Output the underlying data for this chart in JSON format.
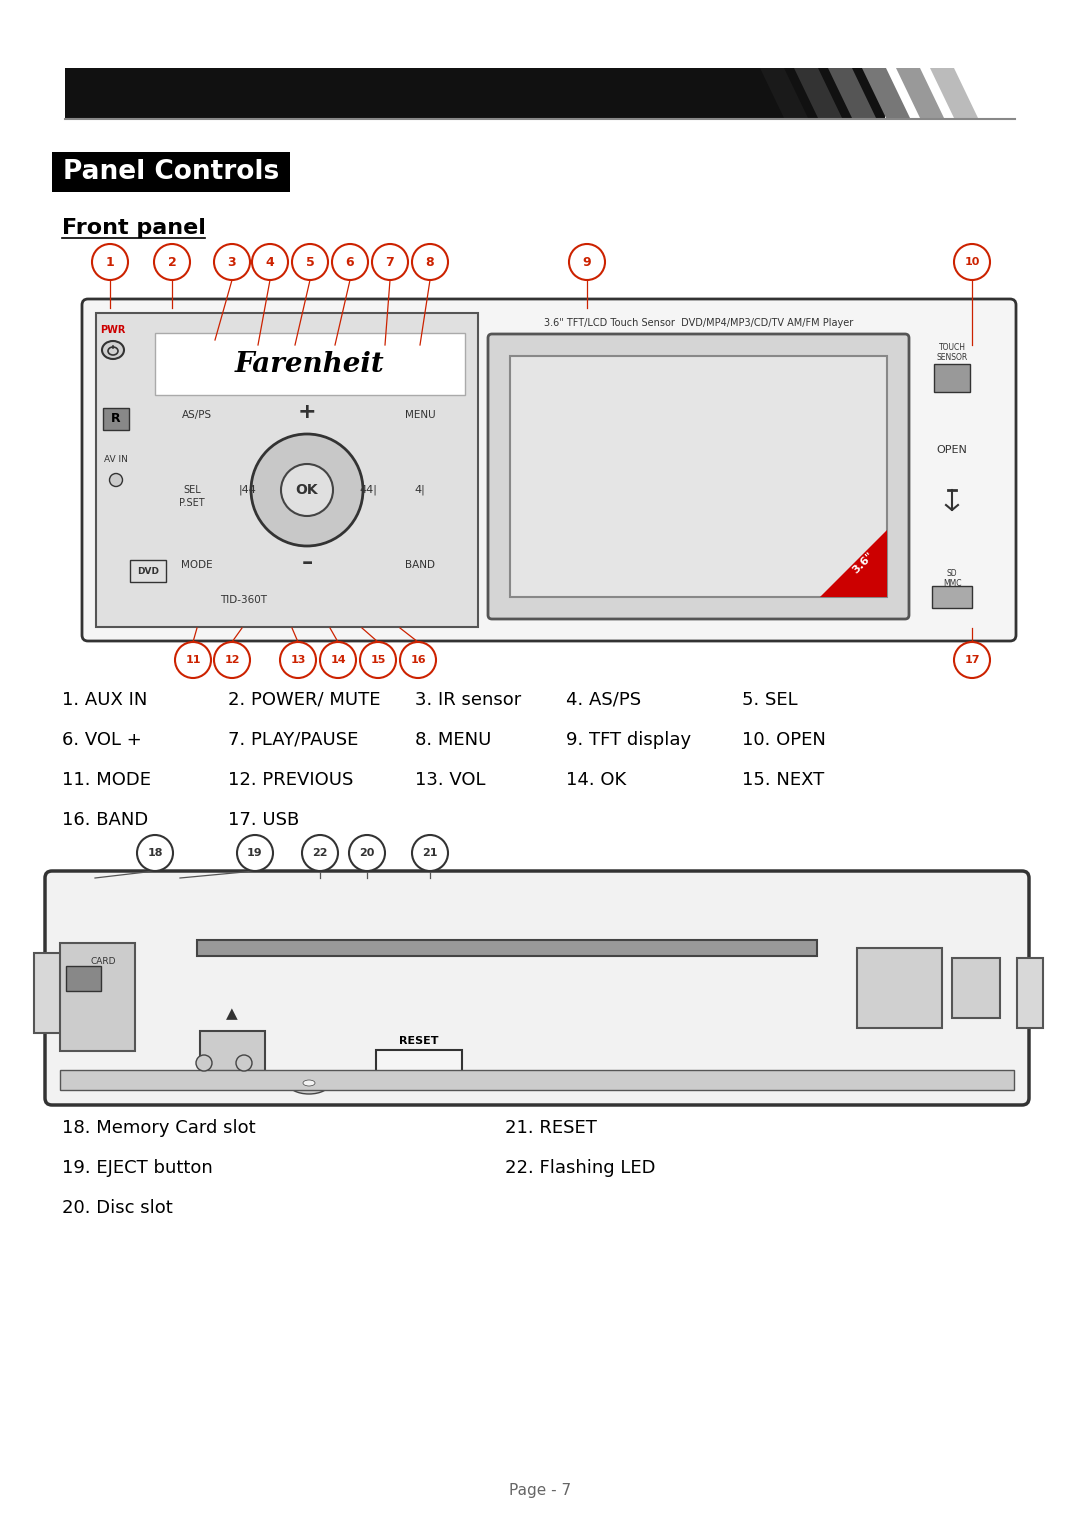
{
  "title": "Panel Controls",
  "subtitle": "Front panel",
  "bg_color": "#ffffff",
  "header_bar_color": "#111111",
  "title_bg": "#000000",
  "title_text": "#ffffff",
  "legend_col1": [
    "1. AUX IN",
    "6. VOL +",
    "11. MODE",
    "16. BAND"
  ],
  "legend_col2": [
    "2. POWER/ MUTE",
    "7. PLAY/PAUSE",
    "12. PREVIOUS",
    "17. USB"
  ],
  "legend_col3": [
    "3. IR sensor",
    "8. MENU",
    "13. VOL",
    ""
  ],
  "legend_col4": [
    "4. AS/PS",
    "9. TFT display",
    "14. OK",
    ""
  ],
  "legend_col5": [
    "5. SEL",
    "10. OPEN",
    "15. NEXT",
    ""
  ],
  "legend2_col1": [
    "18. Memory Card slot",
    "19. EJECT button",
    "20. Disc slot"
  ],
  "legend2_col2": [
    "21. RESET",
    "22. Flashing LED",
    ""
  ],
  "page_num": "Page - 7"
}
